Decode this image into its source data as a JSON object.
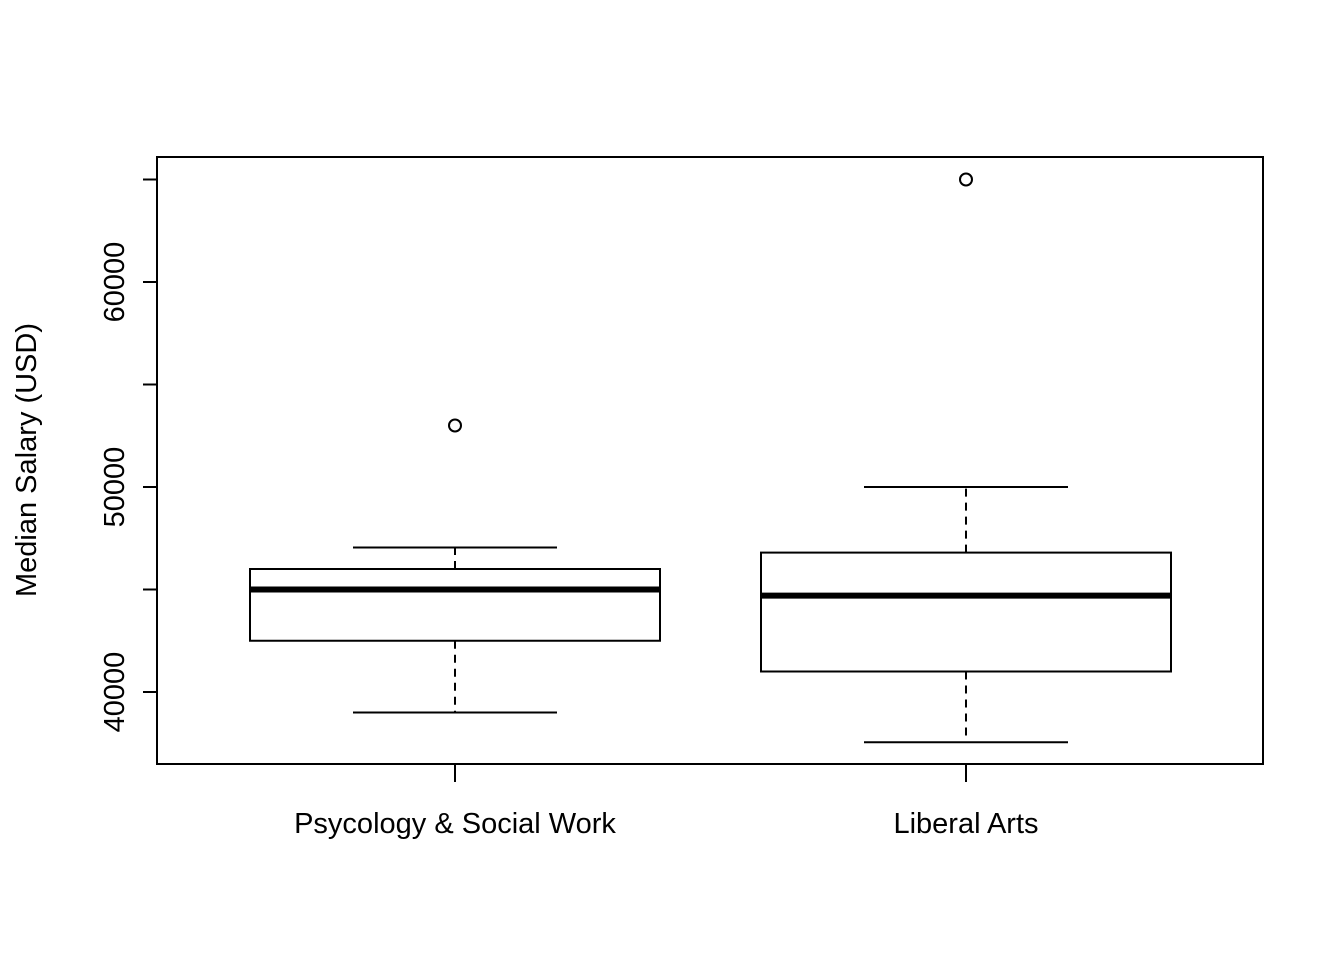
{
  "chart_data": {
    "type": "box",
    "title": "",
    "xlabel": "",
    "ylabel": "Median Salary (USD)",
    "ylim": [
      36500,
      66000
    ],
    "yticks": [
      40000,
      50000,
      60000
    ],
    "ytick_labels": [
      "40000",
      "50000",
      "60000"
    ],
    "grid": false,
    "categories": [
      "Psycology & Social Work",
      "Liberal Arts"
    ],
    "boxes": [
      {
        "category": "Psycology & Social Work",
        "whisker_low": 39000,
        "q1": 42500,
        "median": 45000,
        "q3": 46000,
        "whisker_high": 47050,
        "outliers": [
          53000
        ]
      },
      {
        "category": "Liberal Arts",
        "whisker_low": 37550,
        "q1": 41000,
        "median": 44700,
        "q3": 46800,
        "whisker_high": 50000,
        "outliers": [
          65000
        ]
      }
    ]
  }
}
